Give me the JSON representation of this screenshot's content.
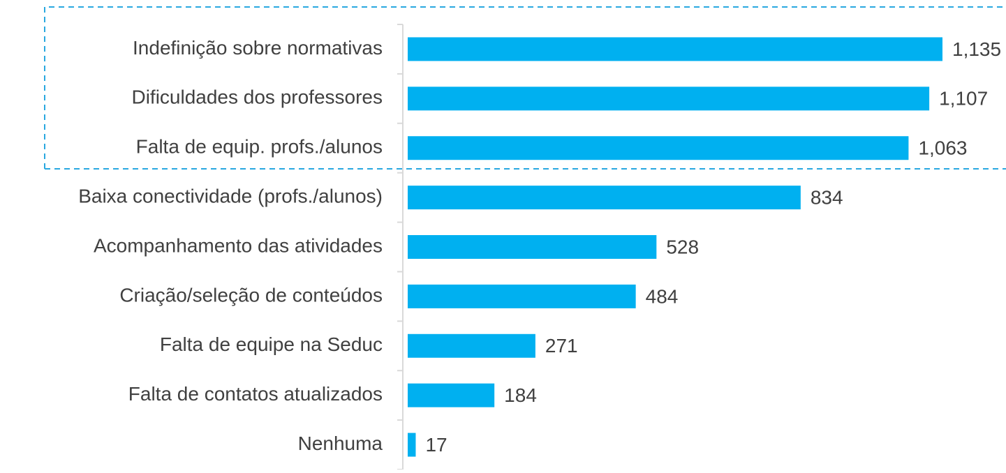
{
  "chart_data": {
    "type": "bar",
    "orientation": "horizontal",
    "categories": [
      "Indefinição sobre normativas",
      "Dificuldades dos professores",
      "Falta de equip. profs./alunos",
      "Baixa conectividade (profs./alunos)",
      "Acompanhamento das atividades",
      "Criação/seleção de conteúdos",
      "Falta de equipe na Seduc",
      "Falta de contatos atualizados",
      "Nenhuma"
    ],
    "values": [
      1135,
      1107,
      1063,
      834,
      528,
      484,
      271,
      184,
      17
    ],
    "value_labels": [
      "1,135",
      "1,107",
      "1,063",
      "834",
      "528",
      "484",
      "271",
      "184",
      "17"
    ],
    "color": "#00b0f0"
  }
}
